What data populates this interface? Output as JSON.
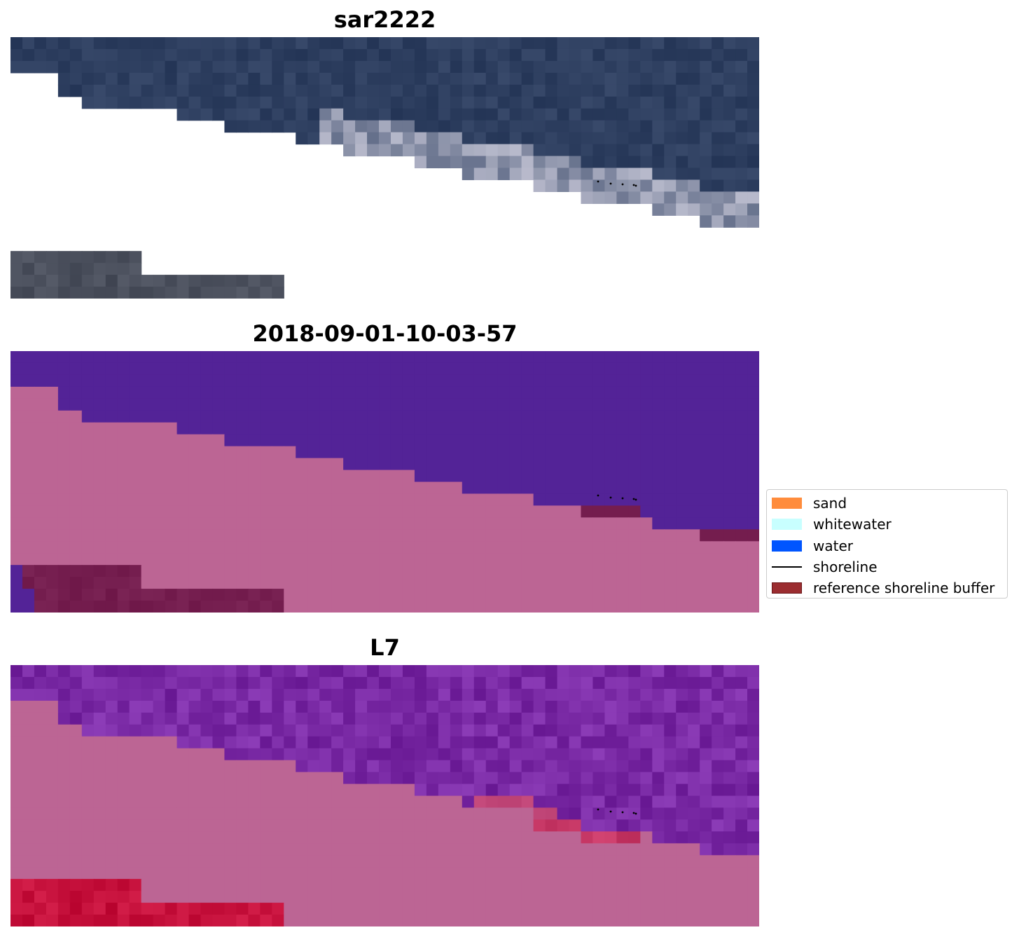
{
  "panels": [
    {
      "title": "sar2222",
      "kind": "rgb"
    },
    {
      "title": "2018-09-01-10-03-57",
      "kind": "classified"
    },
    {
      "title": "L7",
      "kind": "index"
    }
  ],
  "legend": {
    "items": [
      {
        "label": "sand",
        "color": "#ff8c3c",
        "type": "patch"
      },
      {
        "label": "whitewater",
        "color": "#c8ffff",
        "type": "patch"
      },
      {
        "label": "water",
        "color": "#0055ff",
        "type": "patch"
      },
      {
        "label": "shoreline",
        "color": "#000000",
        "type": "line"
      },
      {
        "label": "reference shoreline buffer",
        "color": "#9b2d30",
        "type": "patch"
      }
    ]
  },
  "colors": {
    "background": "#ffffff",
    "rgb_water": "#2e3f60",
    "rgb_bright": "#c8c8d8",
    "classified_water": "#532397",
    "classified_land": "#bc6594",
    "buffer_dark": "#741d4e",
    "index_water": "#7a2aa5",
    "index_land": "#bc6594",
    "index_red": "#c5103b"
  }
}
